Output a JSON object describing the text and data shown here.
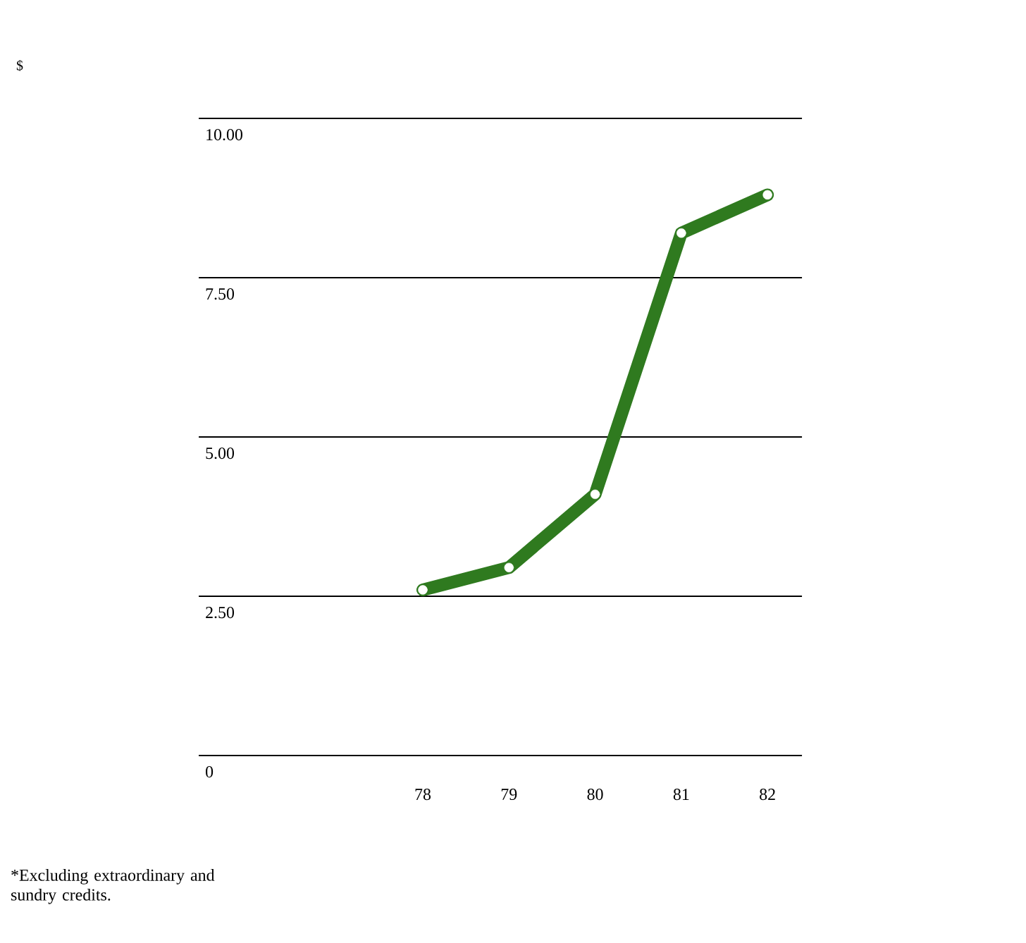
{
  "chart_data": {
    "type": "line",
    "categories": [
      "78",
      "79",
      "80",
      "81",
      "82"
    ],
    "series": [
      {
        "color": "#2f7a1f",
        "values": [
          2.6,
          2.95,
          4.1,
          8.2,
          8.8
        ]
      }
    ],
    "ylim": [
      0,
      10
    ],
    "yticks": [
      0,
      {
        "value": 2.5,
        "label": "2.50"
      },
      {
        "value": 5,
        "label": "5.00"
      },
      {
        "value": 7.5,
        "label": "7.50"
      },
      {
        "value": 10,
        "label": "10.00"
      }
    ],
    "grid": "y",
    "marker": "circle",
    "line_style": "solid",
    "annotations": [
      "$",
      "*Excluding extraordinary and sundry credits."
    ]
  }
}
